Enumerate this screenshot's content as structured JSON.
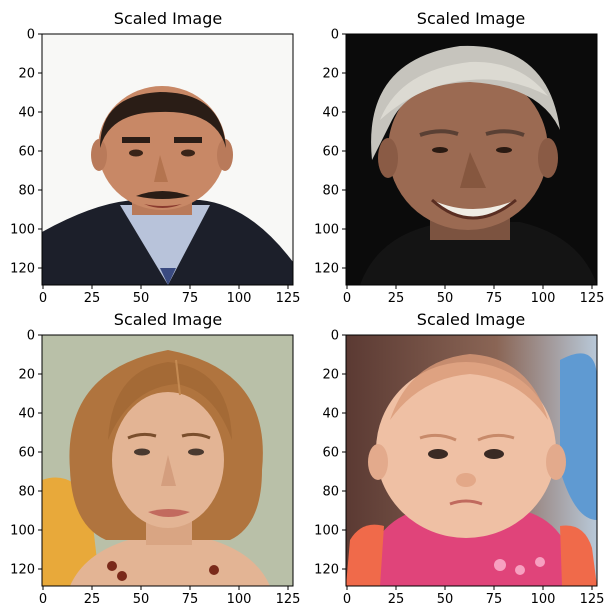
{
  "figure": {
    "panels": [
      {
        "title": "Scaled Image",
        "image_subject": "man-with-mustache-suit",
        "xticks": [
          "0",
          "25",
          "50",
          "75",
          "100",
          "125"
        ],
        "yticks": [
          "0",
          "20",
          "40",
          "60",
          "80",
          "100",
          "120"
        ],
        "colors": {
          "bg": "#f8f8f6",
          "skin": "#c88866",
          "hair": "#2a1d16",
          "suit": "#1c1f2a",
          "shirt": "#b8c3da",
          "tie": "#3a4a80"
        }
      },
      {
        "title": "Scaled Image",
        "image_subject": "smiling-older-man-gray-hair",
        "xticks": [
          "0",
          "25",
          "50",
          "75",
          "100",
          "125"
        ],
        "yticks": [
          "0",
          "20",
          "40",
          "60",
          "80",
          "100",
          "120"
        ],
        "colors": {
          "bg": "#0b0b0b",
          "skin": "#9b6a52",
          "hair": "#c6c4bd",
          "shirt": "#141414",
          "teeth": "#f0ece4"
        }
      },
      {
        "title": "Scaled Image",
        "image_subject": "woman-auburn-bob-hair",
        "xticks": [
          "0",
          "25",
          "50",
          "75",
          "100",
          "125"
        ],
        "yticks": [
          "0",
          "20",
          "40",
          "60",
          "80",
          "100",
          "120"
        ],
        "colors": {
          "bg": "#b9c0a8",
          "skin": "#e3b494",
          "hair": "#b0743e",
          "top": "#e8a93a",
          "necklace": "#7a2a1a"
        }
      },
      {
        "title": "Scaled Image",
        "image_subject": "baby-pink-shirt",
        "xticks": [
          "0",
          "25",
          "50",
          "75",
          "100",
          "125"
        ],
        "yticks": [
          "0",
          "20",
          "40",
          "60",
          "80",
          "100",
          "120"
        ],
        "colors": {
          "bg": "#6b4a40",
          "skin": "#efc0a4",
          "hair": "#d99a78",
          "shirt": "#e0447a",
          "sleeve": "#f06a4a",
          "side": "#5f9ad2"
        }
      }
    ]
  }
}
